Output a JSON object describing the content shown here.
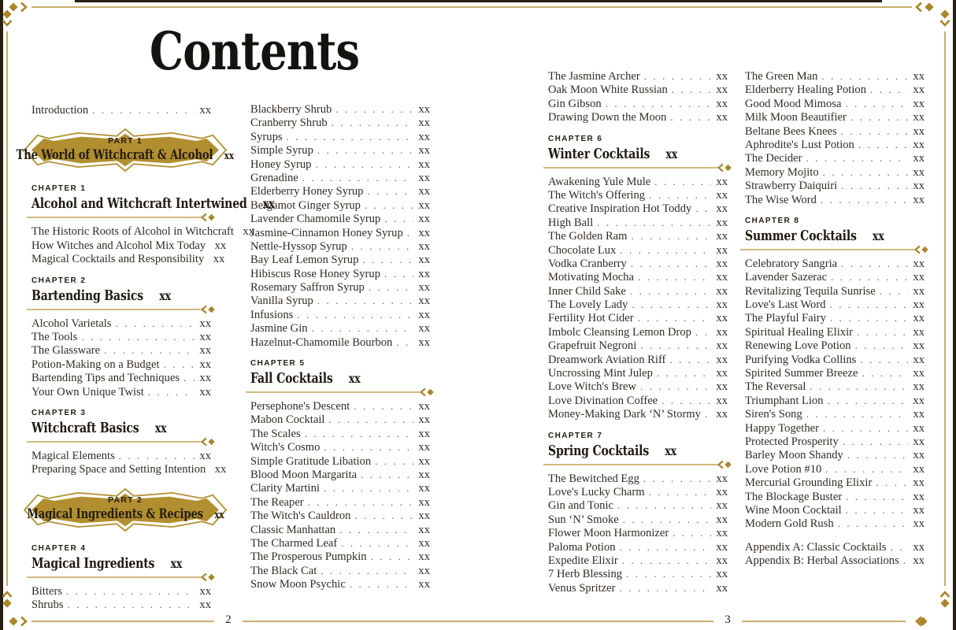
{
  "document": {
    "title": "Contents",
    "page_number_left": "2",
    "page_number_right": "3"
  },
  "colors": {
    "gold_line": "#c2a257",
    "gold_ornament": "#aa8529",
    "badge_fill": "#b18e2f",
    "ink": "#1f1a10"
  },
  "toc": {
    "columns": [
      {
        "blocks": [
          {
            "type": "entry",
            "label": "Introduction",
            "page": "xx"
          },
          {
            "type": "part",
            "eyebrow": "PART 1",
            "title": "The World of Witchcraft & Alcohol",
            "page": "xx"
          },
          {
            "type": "chapter",
            "eyebrow": "CHAPTER 1",
            "title": "Alcohol and Witchcraft Intertwined",
            "page": "xx"
          },
          {
            "type": "entry",
            "label": "The Historic Roots of Alcohol in Witchcraft",
            "page": "xx"
          },
          {
            "type": "entry",
            "label": "How Witches and Alcohol Mix Today",
            "page": "xx"
          },
          {
            "type": "entry",
            "label": "Magical Cocktails and Responsibility",
            "page": "xx"
          },
          {
            "type": "chapter",
            "eyebrow": "CHAPTER 2",
            "title": "Bartending Basics",
            "page": "xx"
          },
          {
            "type": "entry",
            "label": "Alcohol Varietals",
            "page": "xx"
          },
          {
            "type": "entry",
            "label": "The Tools",
            "page": "xx"
          },
          {
            "type": "entry",
            "label": "The Glassware",
            "page": "xx"
          },
          {
            "type": "entry",
            "label": "Potion-Making on a Budget",
            "page": "xx"
          },
          {
            "type": "entry",
            "label": "Bartending Tips and Techniques",
            "page": "xx"
          },
          {
            "type": "entry",
            "label": "Your Own Unique Twist",
            "page": "xx"
          },
          {
            "type": "chapter",
            "eyebrow": "CHAPTER 3",
            "title": "Witchcraft Basics",
            "page": "xx"
          },
          {
            "type": "entry",
            "label": "Magical Elements",
            "page": "xx"
          },
          {
            "type": "entry",
            "label": "Preparing Space and Setting Intention",
            "page": "xx"
          },
          {
            "type": "part",
            "eyebrow": "PART 2",
            "title": "Magical Ingredients & Recipes",
            "page": "xx"
          },
          {
            "type": "chapter",
            "eyebrow": "CHAPTER 4",
            "title": "Magical Ingredients",
            "page": "xx"
          },
          {
            "type": "entry",
            "label": "Bitters",
            "page": "xx"
          },
          {
            "type": "entry",
            "label": "Shrubs",
            "page": "xx"
          }
        ]
      },
      {
        "blocks": [
          {
            "type": "entry",
            "label": "Blackberry Shrub",
            "page": "xx"
          },
          {
            "type": "entry",
            "label": "Cranberry Shrub",
            "page": "xx"
          },
          {
            "type": "entry",
            "label": "Syrups",
            "page": "xx"
          },
          {
            "type": "entry",
            "label": "Simple Syrup",
            "page": "xx"
          },
          {
            "type": "entry",
            "label": "Honey Syrup",
            "page": "xx"
          },
          {
            "type": "entry",
            "label": "Grenadine",
            "page": "xx"
          },
          {
            "type": "entry",
            "label": "Elderberry Honey Syrup",
            "page": "xx"
          },
          {
            "type": "entry",
            "label": "Bergamot Ginger Syrup",
            "page": "xx"
          },
          {
            "type": "entry",
            "label": "Lavender Chamomile Syrup",
            "page": "xx"
          },
          {
            "type": "entry",
            "label": "Jasmine-Cinnamon Honey Syrup",
            "page": "xx"
          },
          {
            "type": "entry",
            "label": "Nettle-Hyssop Syrup",
            "page": "xx"
          },
          {
            "type": "entry",
            "label": "Bay Leaf Lemon Syrup",
            "page": "xx"
          },
          {
            "type": "entry",
            "label": "Hibiscus Rose Honey Syrup",
            "page": "xx"
          },
          {
            "type": "entry",
            "label": "Rosemary Saffron Syrup",
            "page": "xx"
          },
          {
            "type": "entry",
            "label": "Vanilla Syrup",
            "page": "xx"
          },
          {
            "type": "entry",
            "label": "Infusions",
            "page": "xx"
          },
          {
            "type": "entry",
            "label": "Jasmine Gin",
            "page": "xx"
          },
          {
            "type": "entry",
            "label": "Hazelnut-Chamomile Bourbon",
            "page": "xx"
          },
          {
            "type": "chapter",
            "eyebrow": "CHAPTER 5",
            "title": "Fall Cocktails",
            "page": "xx"
          },
          {
            "type": "entry",
            "label": "Persephone's Descent",
            "page": "xx"
          },
          {
            "type": "entry",
            "label": "Mabon Cocktail",
            "page": "xx"
          },
          {
            "type": "entry",
            "label": "The Scales",
            "page": "xx"
          },
          {
            "type": "entry",
            "label": "Witch's Cosmo",
            "page": "xx"
          },
          {
            "type": "entry",
            "label": "Simple Gratitude Libation",
            "page": "xx"
          },
          {
            "type": "entry",
            "label": "Blood Moon Margarita",
            "page": "xx"
          },
          {
            "type": "entry",
            "label": "Clarity Martini",
            "page": "xx"
          },
          {
            "type": "entry",
            "label": "The Reaper",
            "page": "xx"
          },
          {
            "type": "entry",
            "label": "The Witch's Cauldron",
            "page": "xx"
          },
          {
            "type": "entry",
            "label": "Classic Manhattan",
            "page": "xx"
          },
          {
            "type": "entry",
            "label": "The Charmed Leaf",
            "page": "xx"
          },
          {
            "type": "entry",
            "label": "The Prosperous Pumpkin",
            "page": "xx"
          },
          {
            "type": "entry",
            "label": "The Black Cat",
            "page": "xx"
          },
          {
            "type": "entry",
            "label": "Snow Moon Psychic",
            "page": "xx"
          }
        ]
      },
      {
        "blocks": [
          {
            "type": "entry",
            "label": "The Jasmine Archer",
            "page": "xx"
          },
          {
            "type": "entry",
            "label": "Oak Moon White Russian",
            "page": "xx"
          },
          {
            "type": "entry",
            "label": "Gin Gibson",
            "page": "xx"
          },
          {
            "type": "entry",
            "label": "Drawing Down the Moon",
            "page": "xx"
          },
          {
            "type": "chapter",
            "eyebrow": "CHAPTER 6",
            "title": "Winter Cocktails",
            "page": "xx"
          },
          {
            "type": "entry",
            "label": "Awakening Yule Mule",
            "page": "xx"
          },
          {
            "type": "entry",
            "label": "The Witch's Offering",
            "page": "xx"
          },
          {
            "type": "entry",
            "label": "Creative Inspiration Hot Toddy",
            "page": "xx"
          },
          {
            "type": "entry",
            "label": "High Ball",
            "page": "xx"
          },
          {
            "type": "entry",
            "label": "The Golden Ram",
            "page": "xx"
          },
          {
            "type": "entry",
            "label": "Chocolate Lux",
            "page": "xx"
          },
          {
            "type": "entry",
            "label": "Vodka Cranberry",
            "page": "xx"
          },
          {
            "type": "entry",
            "label": "Motivating Mocha",
            "page": "xx"
          },
          {
            "type": "entry",
            "label": "Inner Child Sake",
            "page": "xx"
          },
          {
            "type": "entry",
            "label": "The Lovely Lady",
            "page": "xx"
          },
          {
            "type": "entry",
            "label": "Fertility Hot Cider",
            "page": "xx"
          },
          {
            "type": "entry",
            "label": "Imbolc Cleansing Lemon Drop",
            "page": "xx"
          },
          {
            "type": "entry",
            "label": "Grapefruit Negroni",
            "page": "xx"
          },
          {
            "type": "entry",
            "label": "Dreamwork Aviation Riff",
            "page": "xx"
          },
          {
            "type": "entry",
            "label": "Uncrossing Mint Julep",
            "page": "xx"
          },
          {
            "type": "entry",
            "label": "Love Witch's Brew",
            "page": "xx"
          },
          {
            "type": "entry",
            "label": "Love Divination Coffee",
            "page": "xx"
          },
          {
            "type": "entry",
            "label": "Money-Making Dark ‘N’ Stormy",
            "page": "xx"
          },
          {
            "type": "chapter",
            "eyebrow": "CHAPTER 7",
            "title": "Spring Cocktails",
            "page": "xx"
          },
          {
            "type": "entry",
            "label": "The Bewitched Egg",
            "page": "xx"
          },
          {
            "type": "entry",
            "label": "Love's Lucky Charm",
            "page": "xx"
          },
          {
            "type": "entry",
            "label": "Gin and Tonic",
            "page": "xx"
          },
          {
            "type": "entry",
            "label": "Sun ‘N’ Smoke",
            "page": "xx"
          },
          {
            "type": "entry",
            "label": "Flower Moon Harmonizer",
            "page": "xx"
          },
          {
            "type": "entry",
            "label": "Paloma Potion",
            "page": "xx"
          },
          {
            "type": "entry",
            "label": "Expedite Elixir",
            "page": "xx"
          },
          {
            "type": "entry",
            "label": "7 Herb Blessing",
            "page": "xx"
          },
          {
            "type": "entry",
            "label": "Venus Spritzer",
            "page": "xx"
          }
        ]
      },
      {
        "blocks": [
          {
            "type": "entry",
            "label": "The Green Man",
            "page": "xx"
          },
          {
            "type": "entry",
            "label": "Elderberry Healing Potion",
            "page": "xx"
          },
          {
            "type": "entry",
            "label": "Good Mood Mimosa",
            "page": "xx"
          },
          {
            "type": "entry",
            "label": "Milk Moon Beautifier",
            "page": "xx"
          },
          {
            "type": "entry",
            "label": "Beltane Bees Knees",
            "page": "xx"
          },
          {
            "type": "entry",
            "label": "Aphrodite's Lust Potion",
            "page": "xx"
          },
          {
            "type": "entry",
            "label": "The Decider",
            "page": "xx"
          },
          {
            "type": "entry",
            "label": "Memory Mojito",
            "page": "xx"
          },
          {
            "type": "entry",
            "label": "Strawberry Daiquiri",
            "page": "xx"
          },
          {
            "type": "entry",
            "label": "The Wise Word",
            "page": "xx"
          },
          {
            "type": "chapter",
            "eyebrow": "CHAPTER 8",
            "title": "Summer Cocktails",
            "page": "xx"
          },
          {
            "type": "entry",
            "label": "Celebratory Sangria",
            "page": "xx"
          },
          {
            "type": "entry",
            "label": "Lavender Sazerac",
            "page": "xx"
          },
          {
            "type": "entry",
            "label": "Revitalizing Tequila Sunrise",
            "page": "xx"
          },
          {
            "type": "entry",
            "label": "Love's Last Word",
            "page": "xx"
          },
          {
            "type": "entry",
            "label": "The Playful Fairy",
            "page": "xx"
          },
          {
            "type": "entry",
            "label": "Spiritual Healing Elixir",
            "page": "xx"
          },
          {
            "type": "entry",
            "label": "Renewing Love Potion",
            "page": "xx"
          },
          {
            "type": "entry",
            "label": "Purifying Vodka Collins",
            "page": "xx"
          },
          {
            "type": "entry",
            "label": "Spirited Summer Breeze",
            "page": "xx"
          },
          {
            "type": "entry",
            "label": "The Reversal",
            "page": "xx"
          },
          {
            "type": "entry",
            "label": "Triumphant Lion",
            "page": "xx"
          },
          {
            "type": "entry",
            "label": "Siren's Song",
            "page": "xx"
          },
          {
            "type": "entry",
            "label": "Happy Together",
            "page": "xx"
          },
          {
            "type": "entry",
            "label": "Protected Prosperity",
            "page": "xx"
          },
          {
            "type": "entry",
            "label": "Barley Moon Shandy",
            "page": "xx"
          },
          {
            "type": "entry",
            "label": "Love Potion #10",
            "page": "xx"
          },
          {
            "type": "entry",
            "label": "Mercurial Grounding Elixir",
            "page": "xx"
          },
          {
            "type": "entry",
            "label": "The Blockage Buster",
            "page": "xx"
          },
          {
            "type": "entry",
            "label": "Wine Moon Cocktail",
            "page": "xx"
          },
          {
            "type": "entry",
            "label": "Modern Gold Rush",
            "page": "xx"
          },
          {
            "type": "gap"
          },
          {
            "type": "entry",
            "label": "Appendix A: Classic Cocktails",
            "page": "xx"
          },
          {
            "type": "entry",
            "label": "Appendix B: Herbal Associations",
            "page": "xx"
          }
        ]
      }
    ]
  }
}
